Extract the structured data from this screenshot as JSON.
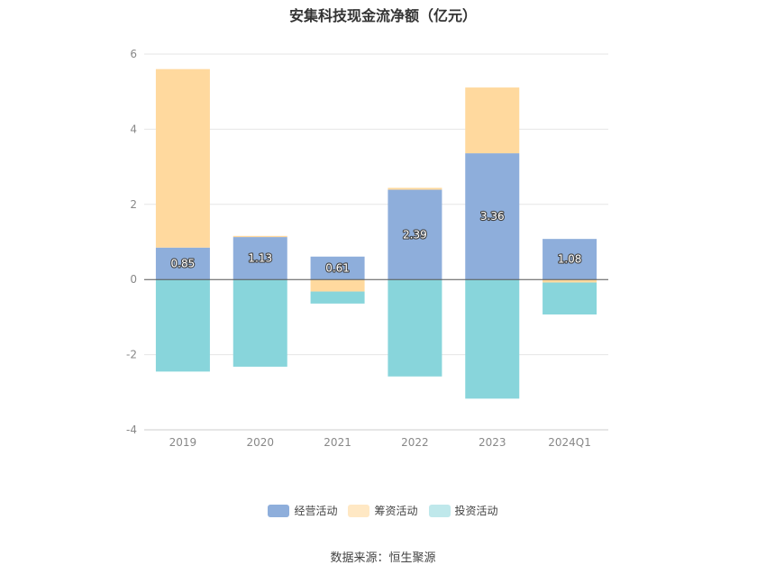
{
  "chart_data": {
    "type": "bar",
    "stacked": true,
    "title": "安集科技现金流净额（亿元）",
    "categories": [
      "2019",
      "2020",
      "2021",
      "2022",
      "2023",
      "2024Q1"
    ],
    "series": [
      {
        "name": "经营活动",
        "color": "#8eaedb",
        "values": [
          0.85,
          1.13,
          0.61,
          2.39,
          3.36,
          1.08
        ]
      },
      {
        "name": "筹资活动",
        "color": "#ffd99e",
        "values": [
          4.75,
          0.03,
          -0.32,
          0.05,
          1.75,
          -0.08
        ]
      },
      {
        "name": "投资活动",
        "color": "#88d5db",
        "values": [
          -2.45,
          -2.32,
          -0.32,
          -2.58,
          -3.17,
          -0.85
        ]
      }
    ],
    "data_labels": [
      "0.85",
      "1.13",
      "0.61",
      "2.39",
      "3.36",
      "1.08"
    ],
    "ylim": [
      -4,
      6
    ],
    "yticks": [
      "6",
      "4",
      "2",
      "0",
      "-2",
      "-4"
    ],
    "grid": true,
    "legend_position": "bottom"
  },
  "legend": {
    "items": [
      {
        "label": "经营活动",
        "color": "#8eaedb"
      },
      {
        "label": "筹资活动",
        "color": "#ffe8c4"
      },
      {
        "label": "投资活动",
        "color": "#bfe8eb"
      }
    ]
  },
  "source_note": "数据来源：恒生聚源"
}
